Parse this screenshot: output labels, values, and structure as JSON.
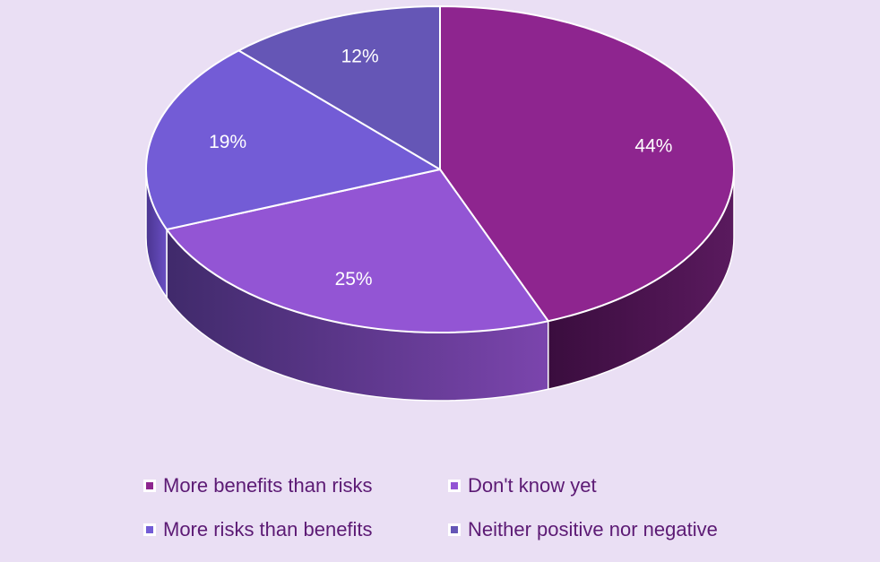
{
  "chart_data": {
    "type": "pie",
    "style": "3d",
    "title": "",
    "slices": [
      {
        "label": "More benefits than risks",
        "value": 44,
        "data_label": "44%",
        "color": "#8e258f",
        "side_color_light": "#5a1a5e",
        "side_color_dark": "#3a0d3e"
      },
      {
        "label": "Don't know yet",
        "value": 25,
        "data_label": "25%",
        "color": "#9355d4",
        "side_color_light": "#7b45ad",
        "side_color_dark": "#402a6b"
      },
      {
        "label": "More risks than benefits",
        "value": 19,
        "data_label": "19%",
        "color": "#735cd6",
        "side_color_light": "#6a4fc4",
        "side_color_dark": "#4a3590"
      },
      {
        "label": "Neither positive nor negative",
        "value": 12,
        "data_label": "12%",
        "color": "#6556b6",
        "side_color_light": "#5a4aa6",
        "side_color_dark": "#3e3080"
      }
    ],
    "legend_position": "bottom",
    "legend_order": [
      0,
      1,
      2,
      3
    ],
    "background_color": "#eadff4",
    "edge_color": "#ffffff",
    "label_color": "#ffffff",
    "legend_text_color": "#5c1a74"
  }
}
